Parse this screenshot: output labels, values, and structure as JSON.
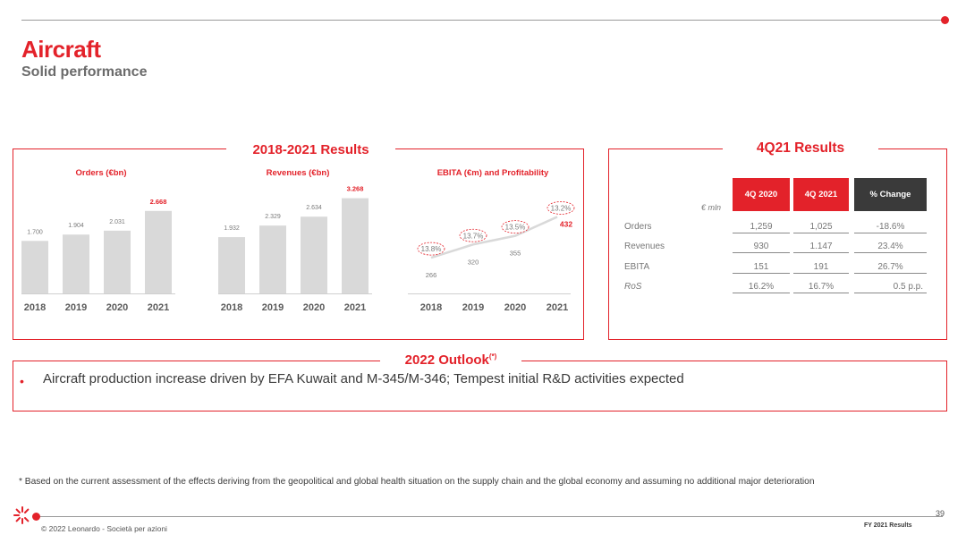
{
  "header": {
    "title": "Aircraft",
    "subtitle": "Solid performance"
  },
  "results_section": {
    "label": "2018-2021 Results"
  },
  "quarter_section": {
    "label": "4Q21 Results",
    "unit": "€ mln",
    "columns": [
      "4Q 2020",
      "4Q 2021",
      "% Change"
    ],
    "rows": [
      {
        "label": "Orders",
        "italic": false,
        "values": [
          "1,259",
          "1,025",
          "-18.6%"
        ]
      },
      {
        "label": "Revenues",
        "italic": false,
        "values": [
          "930",
          "1.147",
          "23.4%"
        ]
      },
      {
        "label": "EBITA",
        "italic": false,
        "values": [
          "151",
          "191",
          "26.7%"
        ]
      },
      {
        "label": "RoS",
        "italic": true,
        "values": [
          "16.2%",
          "16.7%",
          "0.5 p.p."
        ]
      }
    ],
    "header_colors": [
      "#e3222a",
      "#e3222a",
      "#3a3a3a"
    ]
  },
  "outlook": {
    "label": "2022 Outlook",
    "label_sup": "(*)",
    "bullet": "Aircraft production increase driven by EFA Kuwait and M-345/M-346; Tempest initial R&D activities expected"
  },
  "footnote": "* Based on the current assessment of the effects deriving from the geopolitical and global health situation on the supply chain and the global economy and assuming no additional major deterioration",
  "footer": {
    "copyright": "© 2022 Leonardo - Società per azioni",
    "page_number": "39",
    "report_name": "FY 2021 Results"
  },
  "chart_data": [
    {
      "type": "bar",
      "title": "Orders (€bn)",
      "categories": [
        "2018",
        "2019",
        "2020",
        "2021"
      ],
      "values": [
        1.7,
        1.904,
        2.031,
        2.668
      ],
      "value_labels": [
        "1.700",
        "1.904",
        "2.031",
        "2.668"
      ],
      "highlight_last": true,
      "bar_color": "#d9d9d9",
      "highlight_color": "#e3222a",
      "ylim": [
        0,
        3.3
      ]
    },
    {
      "type": "bar",
      "title": "Revenues (€bn)",
      "categories": [
        "2018",
        "2019",
        "2020",
        "2021"
      ],
      "values": [
        1.932,
        2.329,
        2.634,
        3.268
      ],
      "value_labels": [
        "1.932",
        "2.329",
        "2.634",
        "3.268"
      ],
      "highlight_last": true,
      "bar_color": "#d9d9d9",
      "highlight_color": "#e3222a",
      "ylim": [
        0,
        3.5
      ]
    },
    {
      "type": "line",
      "title": "EBITA (€m) and Profitability",
      "categories": [
        "2018",
        "2019",
        "2020",
        "2021"
      ],
      "values": [
        266,
        320,
        355,
        432
      ],
      "value_labels": [
        "266",
        "320",
        "355",
        "432"
      ],
      "profitability_labels": [
        "13.8%",
        "13.7%",
        "13.5%",
        "13.2%"
      ],
      "line_color": "#d9d9d9",
      "ylim": [
        150,
        550
      ]
    }
  ]
}
